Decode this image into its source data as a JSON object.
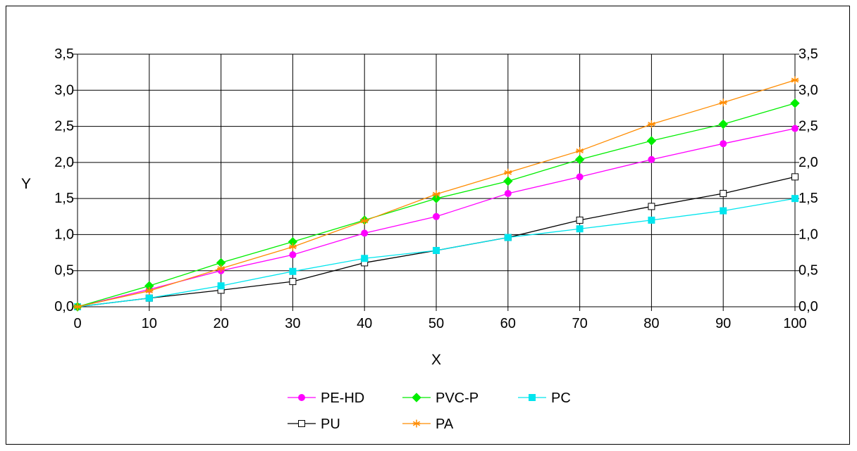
{
  "chart_data": {
    "type": "line",
    "title": "",
    "xlabel": "X",
    "ylabel": "Y",
    "xlim": [
      0,
      100
    ],
    "ylim": [
      0,
      3.5
    ],
    "x_ticks": [
      "0",
      "10",
      "20",
      "30",
      "40",
      "50",
      "60",
      "70",
      "80",
      "90",
      "100"
    ],
    "y_ticks": [
      "0,0",
      "0,5",
      "1,0",
      "1,5",
      "2,0",
      "2,5",
      "3,0",
      "3,5"
    ],
    "grid": true,
    "legend_position": "bottom",
    "x": [
      0,
      10,
      20,
      30,
      40,
      50,
      60,
      70,
      80,
      90,
      100
    ],
    "series": [
      {
        "name": "PE-HD",
        "color": "#ff00ff",
        "marker": "circle",
        "values": [
          0,
          0.24,
          0.5,
          0.72,
          1.02,
          1.25,
          1.57,
          1.8,
          2.04,
          2.26,
          2.47
        ]
      },
      {
        "name": "PVC-P",
        "color": "#00ee00",
        "marker": "diamond",
        "values": [
          0,
          0.29,
          0.61,
          0.9,
          1.2,
          1.5,
          1.74,
          2.04,
          2.3,
          2.53,
          2.82
        ]
      },
      {
        "name": "PC",
        "color": "#00e5ee",
        "marker": "square",
        "values": [
          0,
          0.12,
          0.29,
          0.49,
          0.67,
          0.78,
          0.96,
          1.08,
          1.2,
          1.33,
          1.5
        ]
      },
      {
        "name": "PU",
        "color": "#000000",
        "marker": "open-square",
        "values": [
          0,
          0.12,
          0.23,
          0.35,
          0.61,
          0.78,
          0.96,
          1.2,
          1.39,
          1.57,
          1.8
        ]
      },
      {
        "name": "PA",
        "color": "#ff8c00",
        "marker": "asterisk",
        "values": [
          0,
          0.22,
          0.53,
          0.83,
          1.19,
          1.56,
          1.86,
          2.16,
          2.53,
          2.83,
          3.14
        ]
      }
    ]
  }
}
